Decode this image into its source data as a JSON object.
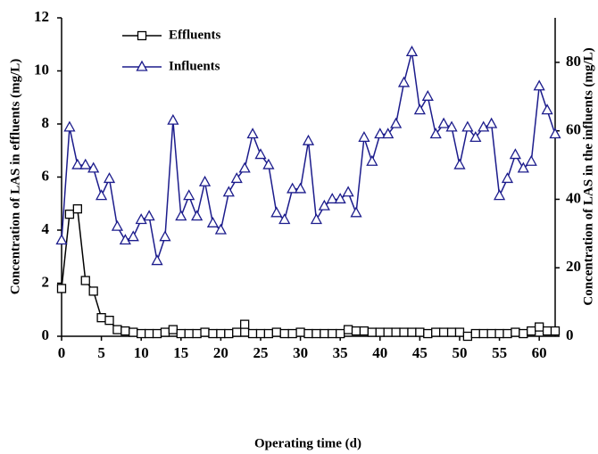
{
  "chart_data": {
    "type": "line",
    "x_label": "Operating time (d)",
    "y_label": "Concentration of LAS in effluents (mg/L)",
    "y2_label": "Concentration of LAS in the influents (mg/L)",
    "x": [
      0,
      1,
      2,
      3,
      4,
      5,
      6,
      7,
      8,
      9,
      10,
      11,
      12,
      13,
      14,
      15,
      16,
      17,
      18,
      19,
      20,
      21,
      22,
      23,
      24,
      25,
      26,
      27,
      28,
      29,
      30,
      31,
      32,
      33,
      34,
      35,
      36,
      37,
      38,
      39,
      40,
      41,
      42,
      43,
      44,
      45,
      46,
      47,
      48,
      49,
      50,
      51,
      52,
      53,
      54,
      55,
      56,
      57,
      58,
      59,
      60,
      61,
      62
    ],
    "xlim": [
      0,
      62
    ],
    "xticks": [
      0,
      5,
      10,
      15,
      20,
      25,
      30,
      35,
      40,
      45,
      50,
      55,
      60
    ],
    "ylim": [
      0,
      12
    ],
    "yticks": [
      0,
      2,
      4,
      6,
      8,
      10,
      12
    ],
    "y2lim": [
      0,
      93
    ],
    "y2ticks": [
      0,
      20,
      40,
      60,
      80
    ],
    "legend": "upper left",
    "series": [
      {
        "name": "Effluents",
        "color": "#000000",
        "marker": "square",
        "values": [
          1.8,
          4.6,
          4.8,
          2.1,
          1.7,
          0.7,
          0.6,
          0.25,
          0.2,
          0.15,
          0.1,
          0.1,
          0.1,
          0.15,
          0.25,
          0.1,
          0.1,
          0.1,
          0.15,
          0.1,
          0.1,
          0.1,
          0.15,
          0.45,
          0.1,
          0.1,
          0.1,
          0.15,
          0.1,
          0.1,
          0.15,
          0.1,
          0.1,
          0.1,
          0.1,
          0.1,
          0.25,
          0.2,
          0.2,
          0.15,
          0.15,
          0.15,
          0.15,
          0.15,
          0.15,
          0.15,
          0.1,
          0.15,
          0.15,
          0.15,
          0.15,
          0.0,
          0.1,
          0.1,
          0.1,
          0.1,
          0.1,
          0.15,
          0.1,
          0.2,
          0.35,
          0.2,
          0.2
        ]
      },
      {
        "name": "Influents",
        "color": "#1c1c8c",
        "marker": "triangle",
        "axis": "y2",
        "values": [
          28,
          61,
          50,
          50,
          49,
          41,
          46,
          32,
          28,
          29,
          34,
          35,
          22,
          29,
          63,
          35,
          41,
          35,
          45,
          33,
          31,
          42,
          46,
          49,
          59,
          53,
          50,
          36,
          34,
          43,
          43,
          57,
          34,
          38,
          40,
          40,
          42,
          36,
          58,
          51,
          59,
          59,
          62,
          74,
          83,
          66,
          70,
          59,
          62,
          61,
          50,
          61,
          58,
          61,
          62,
          41,
          46,
          53,
          49,
          51,
          73,
          66,
          59
        ]
      }
    ]
  }
}
